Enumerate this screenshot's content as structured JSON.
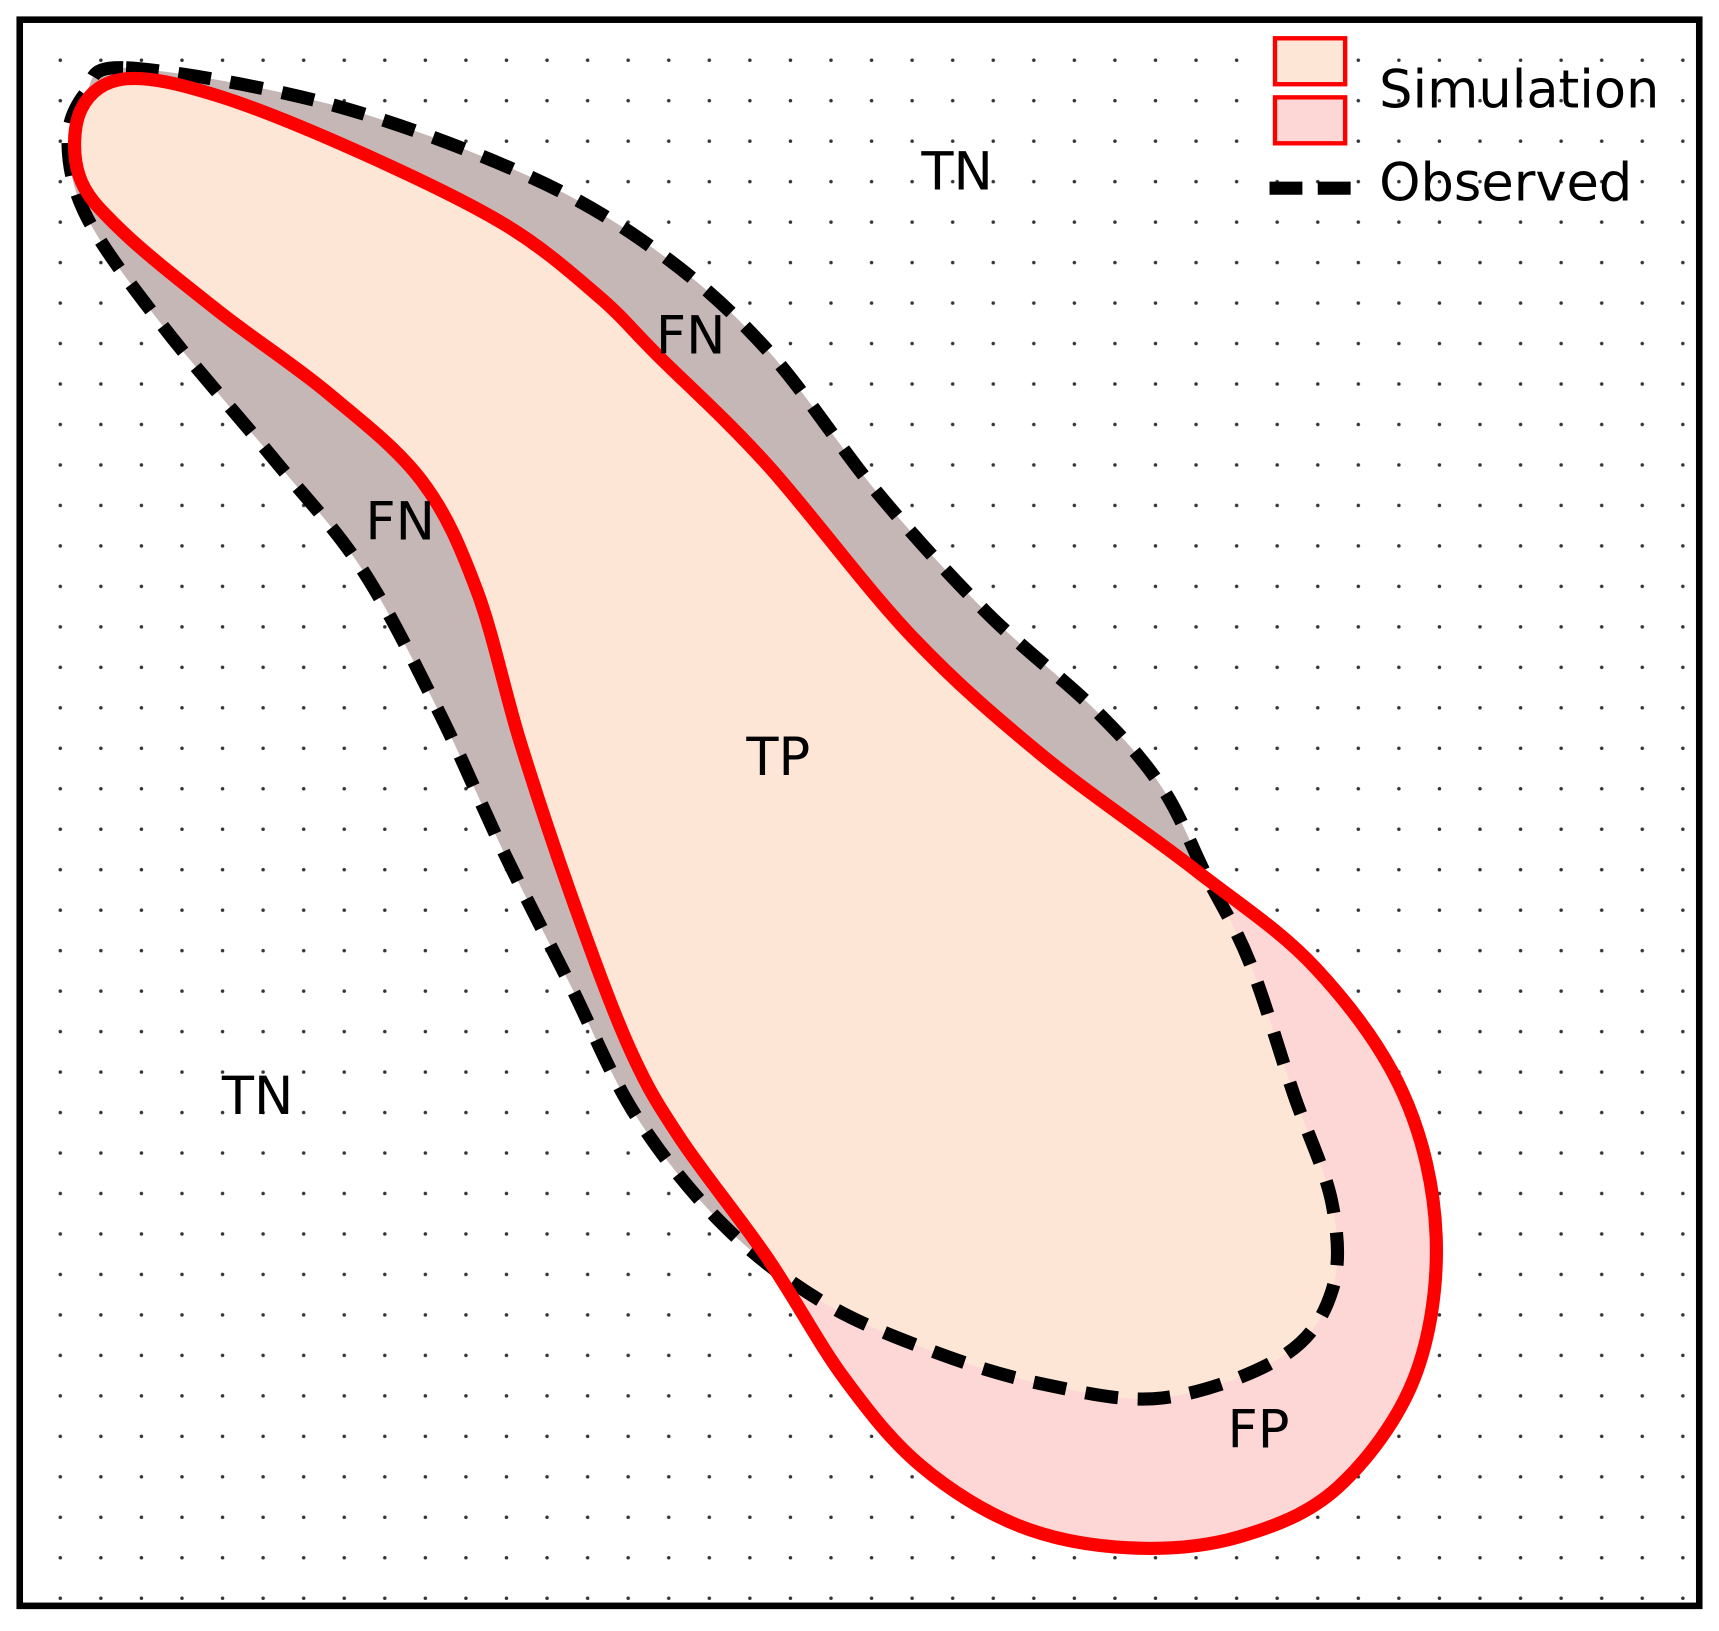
{
  "legend": {
    "simulation": "Simulation",
    "observed": "Observed"
  },
  "regions": [
    {
      "label": "TN"
    },
    {
      "label": "FN"
    },
    {
      "label": "FN"
    },
    {
      "label": "TP"
    },
    {
      "label": "TN"
    },
    {
      "label": "FP"
    }
  ]
}
